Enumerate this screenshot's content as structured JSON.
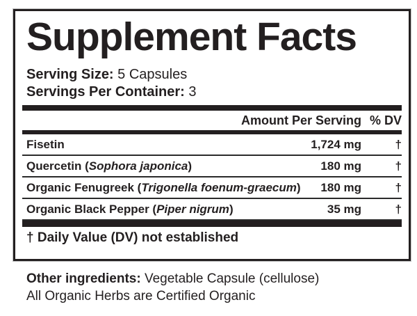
{
  "label": {
    "title": "Supplement Facts",
    "serving_size": {
      "label": "Serving Size:",
      "value": "5 Capsules"
    },
    "servings_per_container": {
      "label": "Servings Per Container:",
      "value": "3"
    },
    "columns": {
      "amount": "Amount Per Serving",
      "dv": "% DV"
    },
    "rows": [
      {
        "name_prefix": "Fisetin",
        "latin": "",
        "name_suffix": "",
        "amount": "1,724 mg",
        "dv": "†"
      },
      {
        "name_prefix": "Quercetin (",
        "latin": "Sophora japonica",
        "name_suffix": ")",
        "amount": "180 mg",
        "dv": "†"
      },
      {
        "name_prefix": "Organic Fenugreek (",
        "latin": "Trigonella foenum-graecum",
        "name_suffix": ")",
        "amount": "180 mg",
        "dv": "†"
      },
      {
        "name_prefix": "Organic Black Pepper (",
        "latin": "Piper nigrum",
        "name_suffix": ")",
        "amount": "35 mg",
        "dv": "†"
      }
    ],
    "footnote": "† Daily Value (DV) not established",
    "other_ingredients": {
      "label": "Other ingredients:",
      "value": "Vegetable Capsule (cellulose)"
    },
    "organic_note": "All Organic Herbs are Certified Organic"
  },
  "colors": {
    "text": "#231f20",
    "border": "#231f20",
    "background": "#ffffff"
  }
}
